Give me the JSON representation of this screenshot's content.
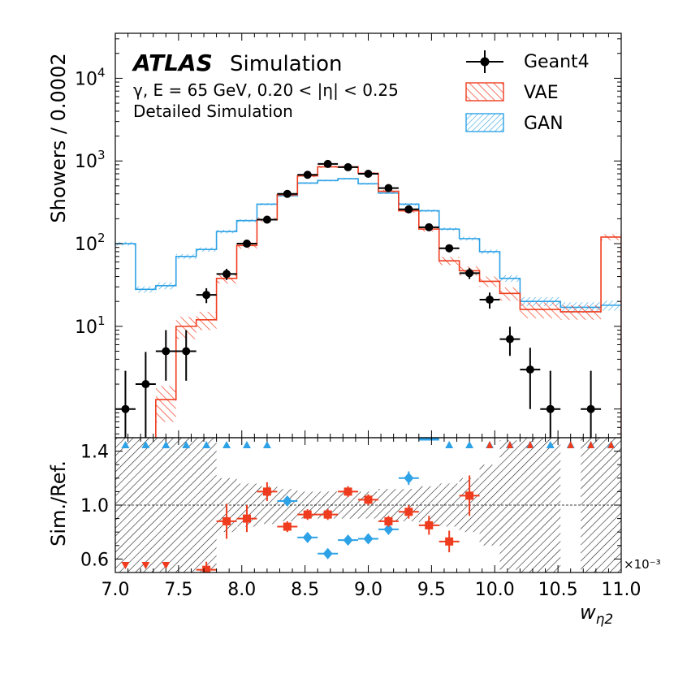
{
  "chart_data": {
    "type": "step-histogram-with-ratio",
    "x_multiplier_label": "×10⁻³",
    "xlabel_main": "w",
    "xlabel_sub": "η2",
    "ylabel": "Showers / 0.0002",
    "ratio_ylabel": "Sim./Ref.",
    "xlim": [
      7.0,
      11.0
    ],
    "ylim": [
      0.45,
      35000
    ],
    "ratio_ylim": [
      0.5,
      1.5
    ],
    "x_ticks": [
      "7.0",
      "7.5",
      "8.0",
      "8.5",
      "9.0",
      "9.5",
      "10.0",
      "10.5",
      "11.0"
    ],
    "x_tick_values": [
      7.0,
      7.5,
      8.0,
      8.5,
      9.0,
      9.5,
      10.0,
      10.5,
      11.0
    ],
    "y_ticks": [
      {
        "value": 10,
        "base": "10",
        "exp": "1"
      },
      {
        "value": 100,
        "base": "10",
        "exp": "2"
      },
      {
        "value": 1000,
        "base": "10",
        "exp": "3"
      },
      {
        "value": 10000,
        "base": "10",
        "exp": "4"
      }
    ],
    "ratio_ticks": [
      "0.6",
      "1.0",
      "1.4"
    ],
    "ratio_tick_values": [
      0.6,
      1.0,
      1.4
    ],
    "annotations": {
      "atlas": "ATLAS",
      "simulation": "Simulation",
      "line1": "γ, E = 65 GeV, 0.20 < |η| < 0.25",
      "line2": "Detailed Simulation"
    },
    "legend": [
      "Geant4",
      "VAE",
      "GAN"
    ],
    "colors": {
      "geant4": "#000000",
      "vae": "#f03c1e",
      "gan": "#2ea2e6"
    },
    "bin_edges": [
      7.0,
      7.16,
      7.32,
      7.48,
      7.64,
      7.8,
      7.96,
      8.12,
      8.28,
      8.44,
      8.6,
      8.76,
      8.92,
      9.08,
      9.24,
      9.4,
      9.56,
      9.72,
      9.88,
      10.04,
      10.2,
      10.36,
      10.52,
      10.68,
      10.84,
      11.0
    ],
    "geant4": {
      "x": [
        7.08,
        7.24,
        7.4,
        7.56,
        7.72,
        7.88,
        8.04,
        8.2,
        8.36,
        8.52,
        8.68,
        8.84,
        9.0,
        9.16,
        9.32,
        9.48,
        9.64,
        9.8,
        9.96,
        10.12,
        10.28,
        10.44,
        10.76
      ],
      "y": [
        1,
        2,
        5,
        5,
        24,
        43,
        100,
        195,
        400,
        680,
        920,
        840,
        700,
        470,
        260,
        158,
        88,
        44,
        21,
        7,
        3,
        1,
        1
      ],
      "err_lo": [
        0.99,
        1.59,
        2.8,
        2.8,
        4.9,
        6.6,
        10,
        14,
        20,
        26,
        30,
        29,
        26,
        22,
        16,
        13,
        9.4,
        6.6,
        4.6,
        2.6,
        2.0,
        0.99,
        0.99
      ],
      "err_hi": [
        1.9,
        2.9,
        4.0,
        4.0,
        4.9,
        6.6,
        10,
        14,
        20,
        26,
        30,
        29,
        26,
        22,
        16,
        13,
        9.4,
        6.6,
        4.6,
        2.9,
        2.5,
        1.9,
        1.9
      ]
    },
    "vae": {
      "values": [
        0.1,
        0.1,
        1.3,
        10,
        12,
        38,
        95,
        195,
        390,
        660,
        850,
        850,
        710,
        430,
        250,
        150,
        62,
        47,
        35,
        25,
        16,
        16,
        15,
        15,
        120
      ],
      "err": [
        0.1,
        0.1,
        0.6,
        3,
        3,
        5,
        8,
        12,
        18,
        24,
        28,
        28,
        24,
        18,
        14,
        10,
        7,
        6,
        5,
        4.5,
        3.5,
        3.5,
        3,
        3,
        10
      ]
    },
    "gan": {
      "values": [
        100,
        28,
        31,
        70,
        85,
        140,
        190,
        300,
        380,
        540,
        580,
        610,
        530,
        410,
        300,
        250,
        150,
        115,
        80,
        38,
        20,
        20,
        17,
        17,
        18
      ],
      "err": [
        5,
        2.5,
        3,
        5,
        5,
        7,
        8,
        10,
        12,
        14,
        15,
        15,
        14,
        12,
        10,
        9,
        7,
        6,
        5,
        3.5,
        2.5,
        2.5,
        2.5,
        2.5,
        2.5
      ]
    },
    "ratio_band": [
      1.5,
      1.5,
      1.5,
      1.5,
      1.5,
      1.2,
      1.16,
      1.14,
      1.12,
      1.1,
      1.1,
      1.1,
      1.1,
      1.12,
      1.12,
      1.14,
      1.16,
      1.2,
      1.3,
      1.48,
      1.5,
      1.5,
      1.5,
      1.5,
      1.5
    ],
    "ratio_band_gap": [
      22
    ],
    "vae_ratio": {
      "x": [
        7.72,
        7.88,
        8.04,
        8.2,
        8.36,
        8.52,
        8.68,
        8.84,
        9.0,
        9.16,
        9.32,
        9.48,
        9.64,
        9.8
      ],
      "y": [
        0.52,
        0.88,
        0.9,
        1.1,
        0.84,
        0.93,
        0.93,
        1.1,
        1.04,
        0.88,
        0.95,
        0.85,
        0.73,
        1.07
      ],
      "err": [
        0.06,
        0.13,
        0.1,
        0.07,
        0.04,
        0.04,
        0.04,
        0.04,
        0.04,
        0.04,
        0.05,
        0.07,
        0.08,
        0.15
      ]
    },
    "gan_ratio": {
      "x": [
        8.36,
        8.52,
        8.68,
        8.84,
        9.0,
        9.16,
        9.32
      ],
      "y": [
        1.03,
        0.76,
        0.64,
        0.74,
        0.75,
        0.82,
        1.2
      ],
      "err": [
        0.03,
        0.03,
        0.02,
        0.02,
        0.02,
        0.03,
        0.05
      ]
    },
    "vae_lower_arrows": [
      7.08,
      7.24,
      7.4
    ],
    "vae_upper_arrows": [
      9.96,
      10.12,
      10.28,
      10.6,
      10.76,
      10.92
    ],
    "gan_upper_arrows": [
      7.08,
      7.24,
      7.4,
      7.56,
      7.72,
      7.88,
      8.04,
      8.2,
      9.64,
      9.8,
      9.96,
      10.12,
      10.28,
      10.44,
      10.6,
      10.76,
      10.92
    ],
    "gan_offscale_points": [
      9.48
    ]
  }
}
